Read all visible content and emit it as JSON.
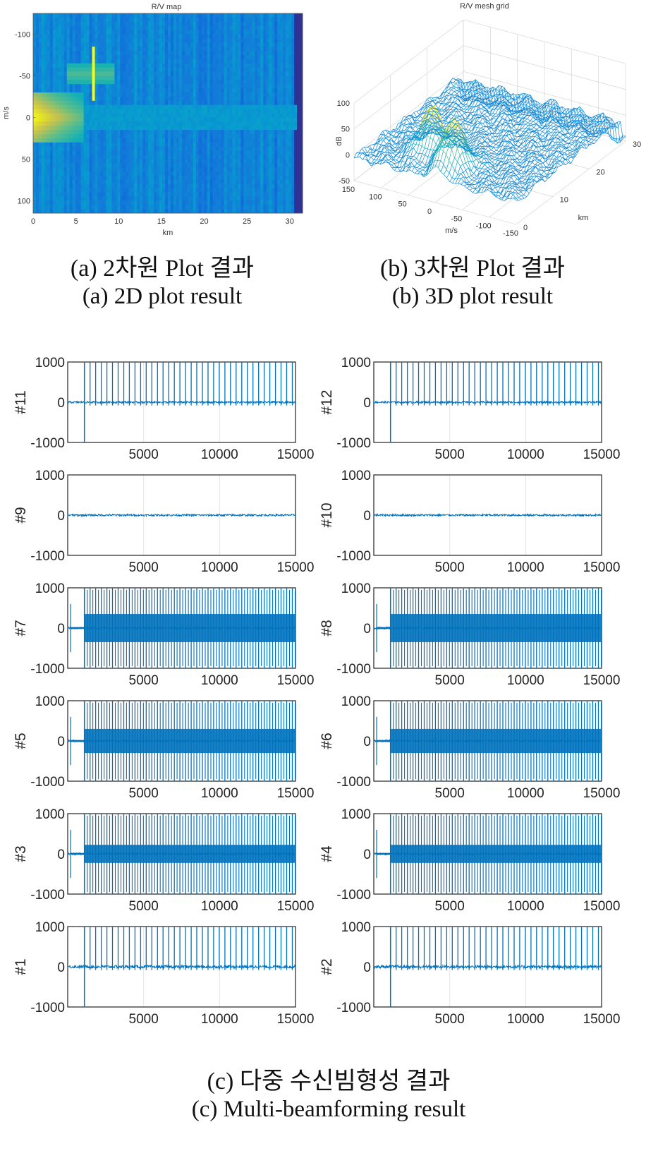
{
  "captions": {
    "a_ko": "(a) 2차원 Plot 결과",
    "a_en": "(a) 2D plot result",
    "b_ko": "(b) 3차원 Plot 결과",
    "b_en": "(b) 3D plot result",
    "c_ko": "(c) 다중 수신빔형성 결과",
    "c_en": "(c) Multi-beamforming result"
  },
  "chart_data": [
    {
      "type": "heatmap",
      "title": "R/V map",
      "xlabel": "km",
      "ylabel": "m/s",
      "xlim": [
        0,
        31.5
      ],
      "ylim": [
        -125,
        115
      ],
      "x_ticks": [
        0,
        5,
        10,
        15,
        20,
        25,
        30
      ],
      "y_ticks": [
        -100,
        -50,
        0,
        50,
        100
      ],
      "colormap": "parula",
      "features": [
        {
          "x_range": [
            0,
            6
          ],
          "y_range": [
            -30,
            30
          ],
          "level": "high"
        },
        {
          "x_range": [
            4,
            9.5
          ],
          "y_range": [
            -65,
            -40
          ],
          "level": "medium-high"
        },
        {
          "x_range": [
            6.8,
            7.2
          ],
          "y_range": [
            -85,
            -20
          ],
          "level": "peak"
        },
        {
          "x_range": [
            0,
            31
          ],
          "y_range": [
            -15,
            15
          ],
          "level": "medium"
        }
      ]
    },
    {
      "type": "surface",
      "title": "R/V mesh grid",
      "xlabel": "m/s",
      "ylabel": "km",
      "zlabel": "dB",
      "x_ticks": [
        150,
        100,
        50,
        0,
        -50,
        -100,
        -150
      ],
      "y_ticks": [
        0,
        10,
        20,
        30
      ],
      "z_ticks": [
        -50,
        0,
        50,
        100
      ],
      "zlim": [
        -50,
        100
      ]
    },
    {
      "type": "line",
      "layout": "6x2 subplots",
      "xlim": [
        0,
        15000
      ],
      "ylim": [
        -1000,
        1000
      ],
      "x_ticks": [
        5000,
        10000,
        15000
      ],
      "y_ticks": [
        -1000,
        0,
        1000
      ],
      "series": [
        {
          "name": "#11",
          "pattern": "pulses",
          "pulse_start": 1100,
          "pulse_period": 370,
          "amplitude": 1000,
          "noise": 40
        },
        {
          "name": "#12",
          "pattern": "pulses",
          "pulse_start": 1100,
          "pulse_period": 370,
          "amplitude": 1000,
          "noise": 40
        },
        {
          "name": "#9",
          "pattern": "noise",
          "amplitude": 0,
          "noise": 40
        },
        {
          "name": "#10",
          "pattern": "noise",
          "amplitude": 0,
          "noise": 40
        },
        {
          "name": "#7",
          "pattern": "dense",
          "pulse_start": 1100,
          "pulse_period": 370,
          "amplitude": 1000,
          "band": 700
        },
        {
          "name": "#8",
          "pattern": "dense",
          "pulse_start": 1100,
          "pulse_period": 370,
          "amplitude": 1000,
          "band": 700
        },
        {
          "name": "#5",
          "pattern": "dense",
          "pulse_start": 1100,
          "pulse_period": 370,
          "amplitude": 1000,
          "band": 600
        },
        {
          "name": "#6",
          "pattern": "dense",
          "pulse_start": 1100,
          "pulse_period": 370,
          "amplitude": 1000,
          "band": 600
        },
        {
          "name": "#3",
          "pattern": "dense",
          "pulse_start": 1100,
          "pulse_period": 370,
          "amplitude": 1000,
          "band": 450
        },
        {
          "name": "#4",
          "pattern": "dense",
          "pulse_start": 1100,
          "pulse_period": 370,
          "amplitude": 1000,
          "band": 450
        },
        {
          "name": "#1",
          "pattern": "pulses",
          "pulse_start": 1100,
          "pulse_period": 370,
          "amplitude": 1000,
          "noise": 60
        },
        {
          "name": "#2",
          "pattern": "pulses",
          "pulse_start": 1100,
          "pulse_period": 370,
          "amplitude": 1000,
          "noise": 60
        }
      ]
    }
  ]
}
